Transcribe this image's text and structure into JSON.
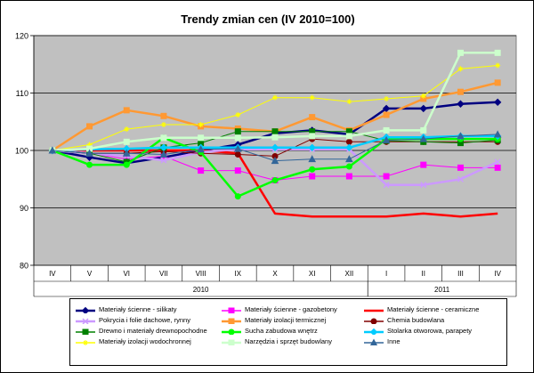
{
  "chart_data": {
    "type": "line",
    "title": "Trendy zmian cen (IV 2010=100)",
    "categories": [
      "IV",
      "V",
      "VI",
      "VII",
      "VIII",
      "IX",
      "X",
      "XI",
      "XII",
      "I",
      "II",
      "III",
      "IV"
    ],
    "year_groups": [
      {
        "label": "2010",
        "start": 0,
        "end": 8
      },
      {
        "label": "2011",
        "start": 9,
        "end": 12
      }
    ],
    "yticks": [
      "80",
      "90",
      "100",
      "110",
      "120"
    ],
    "ylim": [
      80,
      120
    ],
    "grid": true,
    "plot_background": "#C0C0C0",
    "legend_position": "bottom",
    "series": [
      {
        "name": "Materiały ścienne - silikaty",
        "color": "#000080",
        "marker": "diamond",
        "width": 2.5,
        "values": [
          100,
          98.8,
          97.8,
          98.8,
          100,
          101,
          103,
          103.5,
          102.8,
          107.3,
          107.3,
          108.1,
          108.4
        ]
      },
      {
        "name": "Materiały ścienne - gazobetony",
        "color": "#FF00FF",
        "marker": "square",
        "width": 1,
        "values": [
          100,
          99.5,
          98.5,
          99,
          96.5,
          96.5,
          94.8,
          95.5,
          95.5,
          95.5,
          97.5,
          97,
          97
        ]
      },
      {
        "name": "Materiały ścienne - ceramiczne",
        "color": "#FF0000",
        "marker": "none",
        "width": 2.5,
        "values": [
          100,
          100,
          100,
          100,
          100,
          99.5,
          89,
          88.5,
          88.5,
          88.5,
          89,
          88.5,
          89
        ]
      },
      {
        "name": "Pokrycia i folie dachowe, rynny",
        "color": "#CC99FF",
        "marker": "x",
        "width": 2.5,
        "values": [
          100,
          99.5,
          99,
          98.3,
          99.7,
          100.2,
          100.2,
          100.2,
          100.2,
          94,
          94,
          95,
          98
        ]
      },
      {
        "name": "Materiały izolacji termicznej",
        "color": "#FF9933",
        "marker": "square",
        "width": 2.5,
        "values": [
          100,
          104.2,
          107,
          106,
          104.2,
          103.8,
          103.3,
          105.8,
          103.5,
          106.2,
          109,
          110.2,
          111.8
        ]
      },
      {
        "name": "Chemia budowlana",
        "color": "#800000",
        "marker": "circle",
        "width": 1,
        "values": [
          100,
          99.5,
          99.5,
          99.8,
          99.5,
          99.3,
          99,
          102,
          101.5,
          101.5,
          101.5,
          101.5,
          101.5
        ]
      },
      {
        "name": "Drewno i materiały drewnopochodne",
        "color": "#008000",
        "marker": "square",
        "width": 1,
        "values": [
          100,
          99.5,
          98,
          100.5,
          101.3,
          103.3,
          103.3,
          103.3,
          103.3,
          101.7,
          101.5,
          101.3,
          101.8
        ]
      },
      {
        "name": "Sucha zabudowa wnętrz",
        "color": "#00FF00",
        "marker": "circle",
        "width": 2.5,
        "values": [
          100,
          97.5,
          97.5,
          102.2,
          99.7,
          92,
          94.8,
          96.7,
          97.2,
          102,
          102,
          102,
          102
        ]
      },
      {
        "name": "Stolarka otworowa, parapety",
        "color": "#00CCFF",
        "marker": "diamond",
        "width": 2.5,
        "values": [
          100,
          100.2,
          100.3,
          100.5,
          100.5,
          100.5,
          100.5,
          100.5,
          100.5,
          102.3,
          102.3,
          102.5,
          102.5
        ]
      },
      {
        "name": "Materiały izolacji wodochronnej",
        "color": "#FFFF00",
        "marker": "star",
        "width": 1,
        "values": [
          100,
          101,
          103.7,
          104.5,
          104.5,
          106.2,
          109.2,
          109.2,
          108.5,
          109,
          109.5,
          114.2,
          114.8
        ]
      },
      {
        "name": "Narzędzia i sprzęt budowlany",
        "color": "#CCFFCC",
        "marker": "square",
        "width": 2.5,
        "values": [
          100,
          100.3,
          101.5,
          102.2,
          102.2,
          102.2,
          102.3,
          102.5,
          102.5,
          103.5,
          103.5,
          117,
          117
        ]
      },
      {
        "name": "Inne",
        "color": "#336699",
        "marker": "triangle",
        "width": 1,
        "values": [
          100,
          99.5,
          99.5,
          99.3,
          100.2,
          100.3,
          98.2,
          98.5,
          98.5,
          101.8,
          102,
          102.5,
          102.8
        ]
      }
    ]
  }
}
